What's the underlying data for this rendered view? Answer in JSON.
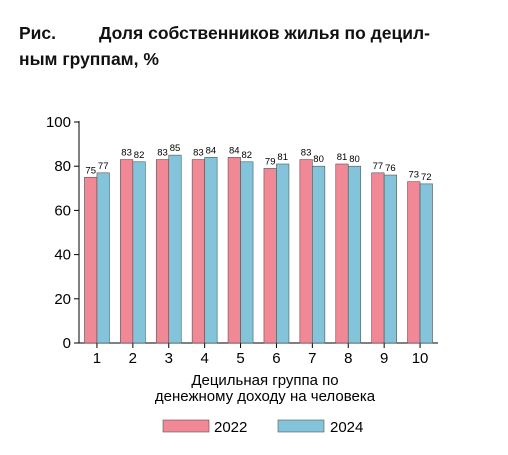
{
  "figure": {
    "label": "Рис.",
    "title_line1": "Доля собственников жилья по децил-",
    "title_line2": "ным группам, %"
  },
  "chart_data": {
    "type": "bar",
    "categories": [
      "1",
      "2",
      "3",
      "4",
      "5",
      "6",
      "7",
      "8",
      "9",
      "10"
    ],
    "series": [
      {
        "name": "2022",
        "values": [
          75,
          83,
          83,
          83,
          84,
          79,
          83,
          81,
          77,
          73
        ],
        "color": "#f08896"
      },
      {
        "name": "2024",
        "values": [
          77,
          82,
          85,
          84,
          82,
          81,
          80,
          80,
          76,
          72
        ],
        "color": "#84c4da"
      }
    ],
    "ylim": [
      0,
      100
    ],
    "yticks": [
      0,
      20,
      40,
      60,
      80,
      100
    ],
    "xlabel_line1": "Децильная группа по",
    "xlabel_line2": "денежному доходу на человека",
    "ylabel": "",
    "grid": false,
    "legend_position": "bottom"
  }
}
